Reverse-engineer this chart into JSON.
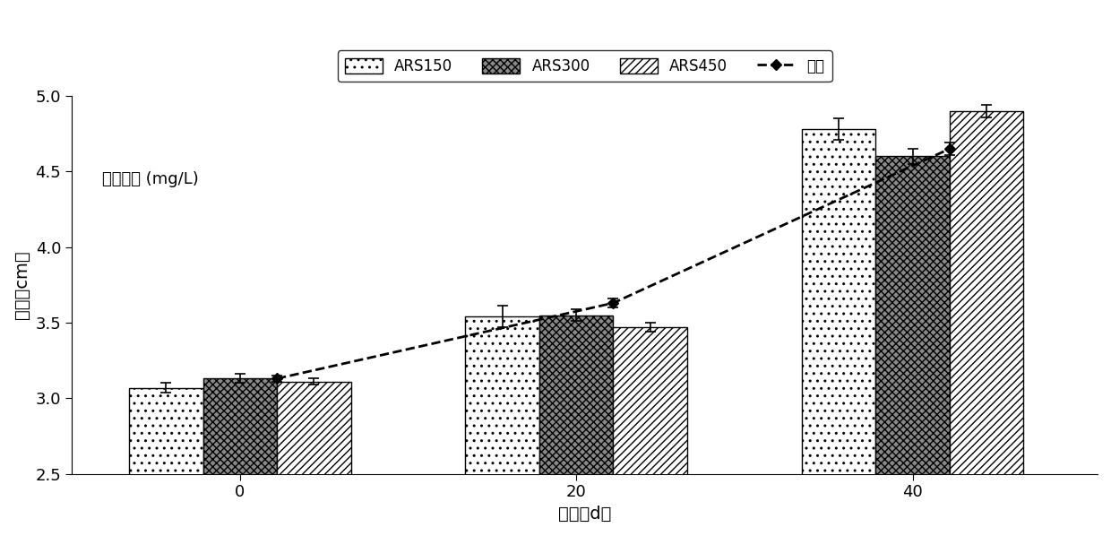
{
  "bar_width": 0.22,
  "series": {
    "ARS150": {
      "values": [
        3.07,
        3.54,
        4.78
      ],
      "errors": [
        0.03,
        0.07,
        0.07
      ],
      "hatch": "..",
      "facecolor": "white",
      "edgecolor": "black"
    },
    "ARS300": {
      "values": [
        3.13,
        3.55,
        4.6
      ],
      "errors": [
        0.03,
        0.04,
        0.05
      ],
      "hatch": "xxxx",
      "facecolor": "#888888",
      "edgecolor": "black"
    },
    "ARS450": {
      "values": [
        3.11,
        3.47,
        4.9
      ],
      "errors": [
        0.02,
        0.03,
        0.04
      ],
      "hatch": "////",
      "facecolor": "white",
      "edgecolor": "black"
    }
  },
  "control_line": {
    "y": [
      3.13,
      3.63,
      4.65
    ],
    "errors": [
      0.02,
      0.03,
      0.04
    ],
    "label": "对照",
    "color": "black",
    "linestyle": "--",
    "linewidth": 2.0,
    "marker": "D",
    "markersize": 6
  },
  "annotation": "标记浓度 (mg/L)",
  "xlabel": "天数（d）",
  "ylabel": "体长（cm）",
  "ylim": [
    2.5,
    5.0
  ],
  "yticks": [
    2.5,
    3.0,
    3.5,
    4.0,
    4.5,
    5.0
  ],
  "axis_fontsize": 14,
  "tick_fontsize": 13,
  "legend_fontsize": 12,
  "background_color": "white",
  "group_centers": [
    0.0,
    1.0,
    2.0
  ],
  "xtick_labels": [
    "0",
    "20",
    "40"
  ]
}
